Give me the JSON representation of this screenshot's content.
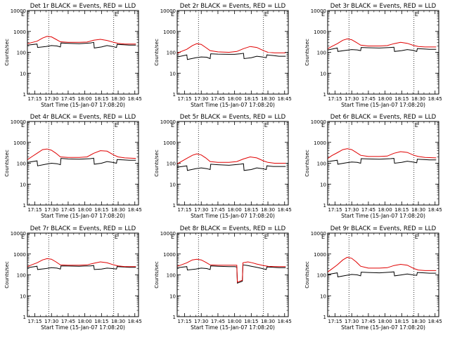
{
  "figure": {
    "ylabel": "Counts/sec",
    "xlabel": "Start Time (15-Jan-07 17:08:20)",
    "xticks": [
      "17:15",
      "17:30",
      "17:45",
      "18:00",
      "18:15",
      "18:30",
      "18:45"
    ],
    "xtick_minutes": [
      15,
      30,
      45,
      60,
      75,
      90,
      105
    ],
    "yticks": [
      "10000",
      "1000",
      "100",
      "10",
      "1"
    ],
    "ytick_values": [
      10000,
      1000,
      100,
      10,
      1
    ],
    "marker_text": "E",
    "colors": {
      "events": "#000000",
      "lld": "#e00000"
    }
  },
  "chart_data": [
    {
      "type": "line",
      "title": "Det 1r BLACK = Events, RED = LLD",
      "x_unit": "minutes after 17:00",
      "xlim": [
        8.33,
        108.33
      ],
      "ylim": [
        1,
        10000
      ],
      "yscale": "log",
      "markers_x": [
        27.5,
        86.0
      ],
      "marker_labels_x": [
        2.0,
        86.0
      ],
      "series": [
        {
          "name": "Events",
          "color": "#000000",
          "x": [
            8.5,
            17,
            17.5,
            25,
            30,
            35,
            38,
            38.5,
            45,
            55,
            60,
            65,
            68,
            68.5,
            75,
            80,
            85,
            88.5,
            89,
            95,
            100,
            106
          ],
          "values": [
            220,
            250,
            170,
            190,
            210,
            200,
            180,
            280,
            270,
            260,
            270,
            280,
            300,
            160,
            180,
            210,
            190,
            170,
            240,
            230,
            220,
            220
          ]
        },
        {
          "name": "LLD",
          "color": "#e00000",
          "x": [
            8.5,
            12,
            17,
            22,
            26,
            30,
            34,
            38,
            45,
            55,
            62,
            68,
            74,
            80,
            86,
            90,
            96,
            106
          ],
          "values": [
            260,
            290,
            340,
            480,
            580,
            550,
            420,
            320,
            300,
            300,
            310,
            380,
            420,
            370,
            300,
            270,
            250,
            250
          ]
        }
      ]
    },
    {
      "type": "line",
      "title": "Det 2r BLACK = Events, RED = LLD",
      "x_unit": "minutes after 17:00",
      "xlim": [
        8.33,
        108.33
      ],
      "ylim": [
        1,
        10000
      ],
      "yscale": "log",
      "markers_x": [
        27.5,
        86.0
      ],
      "marker_labels_x": [
        2.0,
        86.0
      ],
      "series": [
        {
          "name": "Events",
          "color": "#000000",
          "x": [
            8.5,
            17,
            17.5,
            25,
            30,
            35,
            38,
            38.5,
            45,
            55,
            60,
            65,
            68,
            68.5,
            75,
            80,
            85,
            88.5,
            89,
            95,
            100,
            106
          ],
          "values": [
            60,
            75,
            45,
            55,
            60,
            58,
            50,
            85,
            82,
            80,
            80,
            85,
            90,
            50,
            55,
            65,
            60,
            55,
            75,
            70,
            65,
            65
          ]
        },
        {
          "name": "LLD",
          "color": "#e00000",
          "x": [
            8.5,
            12,
            17,
            22,
            26,
            30,
            34,
            38,
            45,
            55,
            62,
            68,
            74,
            80,
            86,
            90,
            96,
            106
          ],
          "values": [
            90,
            110,
            140,
            210,
            260,
            240,
            170,
            120,
            105,
            100,
            110,
            150,
            190,
            170,
            120,
            100,
            95,
            95
          ]
        }
      ]
    },
    {
      "type": "line",
      "title": "Det 3r BLACK = Events, RED = LLD",
      "x_unit": "minutes after 17:00",
      "xlim": [
        8.33,
        108.33
      ],
      "ylim": [
        1,
        10000
      ],
      "yscale": "log",
      "markers_x": [
        27.5,
        86.0
      ],
      "marker_labels_x": [
        2.0,
        86.0
      ],
      "series": [
        {
          "name": "Events",
          "color": "#000000",
          "x": [
            8.5,
            17,
            17.5,
            25,
            30,
            35,
            38,
            38.5,
            45,
            55,
            60,
            65,
            68,
            68.5,
            75,
            80,
            85,
            88.5,
            89,
            95,
            100,
            106
          ],
          "values": [
            130,
            160,
            110,
            125,
            135,
            130,
            120,
            170,
            165,
            160,
            165,
            170,
            175,
            110,
            120,
            135,
            125,
            110,
            150,
            145,
            140,
            140
          ]
        },
        {
          "name": "LLD",
          "color": "#e00000",
          "x": [
            8.5,
            12,
            17,
            22,
            26,
            30,
            34,
            38,
            45,
            55,
            62,
            68,
            74,
            80,
            86,
            90,
            96,
            106
          ],
          "values": [
            150,
            190,
            260,
            380,
            440,
            400,
            300,
            220,
            200,
            200,
            210,
            260,
            300,
            270,
            210,
            190,
            180,
            180
          ]
        }
      ]
    },
    {
      "type": "line",
      "title": "Det 4r BLACK = Events, RED = LLD",
      "x_unit": "minutes after 17:00",
      "xlim": [
        8.33,
        108.33
      ],
      "ylim": [
        1,
        10000
      ],
      "yscale": "log",
      "markers_x": [
        27.5,
        86.0
      ],
      "marker_labels_x": [
        2.0,
        86.0
      ],
      "series": [
        {
          "name": "Events",
          "color": "#000000",
          "x": [
            8.5,
            17,
            17.5,
            25,
            30,
            35,
            38,
            38.5,
            45,
            55,
            60,
            65,
            68,
            68.5,
            75,
            80,
            85,
            88.5,
            89,
            95,
            100,
            106
          ],
          "values": [
            110,
            130,
            75,
            90,
            100,
            95,
            85,
            170,
            160,
            155,
            160,
            165,
            175,
            90,
            100,
            120,
            110,
            100,
            150,
            145,
            140,
            140
          ]
        },
        {
          "name": "LLD",
          "color": "#e00000",
          "x": [
            8.5,
            12,
            17,
            22,
            26,
            30,
            34,
            38,
            45,
            55,
            62,
            68,
            74,
            80,
            86,
            90,
            96,
            106
          ],
          "values": [
            150,
            200,
            300,
            450,
            480,
            420,
            300,
            200,
            190,
            190,
            200,
            300,
            400,
            380,
            250,
            200,
            180,
            170
          ]
        }
      ]
    },
    {
      "type": "line",
      "title": "Det 5r BLACK = Events, RED = LLD",
      "x_unit": "minutes after 17:00",
      "xlim": [
        8.33,
        108.33
      ],
      "ylim": [
        1,
        10000
      ],
      "yscale": "log",
      "markers_x": [
        27.5,
        86.0
      ],
      "marker_labels_x": [
        2.0,
        86.0
      ],
      "series": [
        {
          "name": "Events",
          "color": "#000000",
          "x": [
            8.5,
            17,
            17.5,
            25,
            30,
            35,
            38,
            38.5,
            45,
            55,
            60,
            65,
            68,
            68.5,
            75,
            80,
            85,
            88.5,
            89,
            95,
            100,
            106
          ],
          "values": [
            65,
            75,
            45,
            55,
            60,
            55,
            50,
            90,
            85,
            80,
            85,
            90,
            95,
            45,
            50,
            60,
            55,
            50,
            75,
            70,
            70,
            70
          ]
        },
        {
          "name": "LLD",
          "color": "#e00000",
          "x": [
            8.5,
            12,
            17,
            22,
            26,
            30,
            34,
            38,
            45,
            55,
            62,
            68,
            74,
            80,
            86,
            90,
            96,
            106
          ],
          "values": [
            95,
            120,
            170,
            240,
            280,
            250,
            180,
            120,
            110,
            110,
            120,
            160,
            200,
            180,
            130,
            110,
            100,
            100
          ]
        }
      ]
    },
    {
      "type": "line",
      "title": "Det 6r BLACK = Events, RED = LLD",
      "x_unit": "minutes after 17:00",
      "xlim": [
        8.33,
        108.33
      ],
      "ylim": [
        1,
        10000
      ],
      "yscale": "log",
      "markers_x": [
        27.5,
        86.0
      ],
      "marker_labels_x": [
        2.0,
        86.0
      ],
      "series": [
        {
          "name": "Events",
          "color": "#000000",
          "x": [
            8.5,
            17,
            17.5,
            25,
            30,
            35,
            38,
            38.5,
            45,
            55,
            60,
            65,
            68,
            68.5,
            75,
            80,
            85,
            88.5,
            89,
            95,
            100,
            106
          ],
          "values": [
            120,
            140,
            90,
            105,
            115,
            110,
            100,
            165,
            160,
            155,
            160,
            165,
            170,
            100,
            110,
            125,
            115,
            105,
            155,
            150,
            145,
            145
          ]
        },
        {
          "name": "LLD",
          "color": "#e00000",
          "x": [
            8.5,
            12,
            17,
            22,
            26,
            30,
            34,
            38,
            45,
            55,
            62,
            68,
            74,
            80,
            86,
            90,
            96,
            106
          ],
          "values": [
            170,
            230,
            320,
            450,
            500,
            450,
            330,
            240,
            210,
            210,
            220,
            300,
            360,
            330,
            240,
            210,
            190,
            180
          ]
        }
      ]
    },
    {
      "type": "line",
      "title": "Det 7r BLACK = Events, RED = LLD",
      "x_unit": "minutes after 17:00",
      "xlim": [
        8.33,
        108.33
      ],
      "ylim": [
        1,
        10000
      ],
      "yscale": "log",
      "markers_x": [
        27.5,
        86.0
      ],
      "marker_labels_x": [
        2.0,
        86.0
      ],
      "series": [
        {
          "name": "Events",
          "color": "#000000",
          "x": [
            8.5,
            17,
            17.5,
            25,
            30,
            35,
            38,
            38.5,
            45,
            55,
            60,
            65,
            68,
            68.5,
            75,
            80,
            85,
            88.5,
            89,
            95,
            100,
            106
          ],
          "values": [
            220,
            260,
            180,
            200,
            220,
            210,
            190,
            270,
            265,
            260,
            265,
            270,
            280,
            180,
            190,
            210,
            200,
            190,
            250,
            240,
            230,
            230
          ]
        },
        {
          "name": "LLD",
          "color": "#e00000",
          "x": [
            8.5,
            12,
            17,
            22,
            26,
            30,
            34,
            38,
            45,
            55,
            62,
            68,
            74,
            80,
            86,
            90,
            96,
            106
          ],
          "values": [
            250,
            300,
            380,
            520,
            600,
            560,
            420,
            300,
            290,
            290,
            300,
            360,
            420,
            380,
            300,
            270,
            250,
            250
          ]
        }
      ]
    },
    {
      "type": "line",
      "title": "Det 8r BLACK = Events, RED = LLD",
      "x_unit": "minutes after 17:00",
      "xlim": [
        8.33,
        108.33
      ],
      "ylim": [
        1,
        10000
      ],
      "yscale": "log",
      "markers_x": [
        27.5,
        86.0
      ],
      "marker_labels_x": [
        2.0,
        86.0
      ],
      "series": [
        {
          "name": "Events",
          "color": "#000000",
          "x": [
            8.5,
            17,
            17.5,
            25,
            30,
            35,
            38,
            38.5,
            45,
            55,
            60,
            62,
            62.5,
            67,
            67.5,
            72,
            75,
            80,
            85,
            88.5,
            89,
            95,
            100,
            106
          ],
          "values": [
            220,
            250,
            170,
            190,
            210,
            200,
            180,
            270,
            260,
            250,
            250,
            240,
            40,
            50,
            300,
            280,
            260,
            230,
            200,
            180,
            240,
            230,
            220,
            220
          ]
        },
        {
          "name": "LLD",
          "color": "#e00000",
          "x": [
            8.5,
            12,
            17,
            22,
            26,
            30,
            34,
            38,
            45,
            55,
            60,
            62,
            62.5,
            67,
            67.5,
            72,
            76,
            80,
            86,
            90,
            96,
            106
          ],
          "values": [
            260,
            300,
            380,
            520,
            560,
            520,
            400,
            300,
            290,
            290,
            290,
            290,
            45,
            55,
            380,
            420,
            380,
            330,
            280,
            260,
            250,
            250
          ]
        }
      ]
    },
    {
      "type": "line",
      "title": "Det 9r BLACK = Events, RED = LLD",
      "x_unit": "minutes after 17:00",
      "xlim": [
        8.33,
        108.33
      ],
      "ylim": [
        1,
        10000
      ],
      "yscale": "log",
      "markers_x": [
        27.5,
        86.0
      ],
      "marker_labels_x": [
        2.0,
        86.0
      ],
      "series": [
        {
          "name": "Events",
          "color": "#000000",
          "x": [
            8.5,
            17,
            17.5,
            25,
            30,
            35,
            38,
            38.5,
            45,
            55,
            60,
            65,
            68,
            68.5,
            75,
            80,
            85,
            88.5,
            89,
            95,
            100,
            106
          ],
          "values": [
            105,
            125,
            80,
            95,
            105,
            100,
            90,
            135,
            130,
            125,
            130,
            135,
            140,
            90,
            100,
            110,
            100,
            95,
            130,
            125,
            120,
            120
          ]
        },
        {
          "name": "LLD",
          "color": "#e00000",
          "x": [
            8.5,
            12,
            17,
            22,
            26,
            30,
            34,
            38,
            45,
            55,
            62,
            68,
            74,
            80,
            86,
            90,
            96,
            106
          ],
          "values": [
            140,
            190,
            300,
            520,
            700,
            620,
            420,
            260,
            210,
            210,
            220,
            280,
            320,
            290,
            200,
            170,
            160,
            160
          ]
        }
      ]
    }
  ]
}
